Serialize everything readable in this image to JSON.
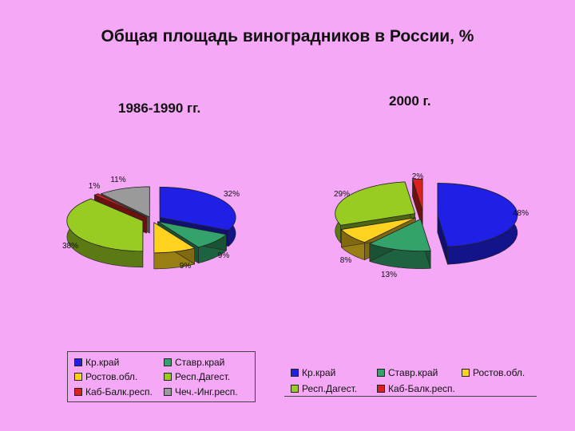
{
  "title": "Общая площадь виноградников в России, %",
  "colors": {
    "kr": "#1f1fe6",
    "stav": "#33a36b",
    "rost": "#ffd21f",
    "dag": "#99cc22",
    "kab": "#dd1f1f",
    "chech": "#9a9a9a"
  },
  "chart_data": [
    {
      "type": "pie",
      "title": "1986-1990 гг.",
      "categories": [
        "Кр.край",
        "Ставр.край",
        "Ростов.обл.",
        "Респ.Дагест.",
        "Каб-Балк.респ.",
        "Чеч.-Инг.респ."
      ],
      "values": [
        32,
        9,
        9,
        38,
        1,
        11
      ],
      "labels": [
        "32%",
        "9%",
        "9%",
        "38%",
        "1%",
        "11%"
      ],
      "legend": "bottom"
    },
    {
      "type": "pie",
      "title": "2000 г.",
      "categories": [
        "Кр.край",
        "Ставр.край",
        "Ростов.обл.",
        "Респ.Дагест.",
        "Каб-Балк.респ."
      ],
      "values": [
        48,
        13,
        8,
        29,
        2
      ],
      "labels": [
        "48%",
        "13%",
        "8%",
        "29%",
        "2%"
      ],
      "legend": "bottom"
    }
  ]
}
